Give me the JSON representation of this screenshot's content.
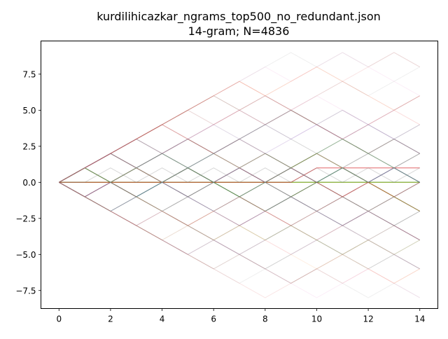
{
  "chart_data": {
    "type": "line",
    "title": [
      "kurdilihicazkar_ngrams_top500_no_redundant.json",
      "14-gram; N=4836"
    ],
    "xlabel": "",
    "ylabel": "",
    "xlim": [
      -0.7,
      14.7
    ],
    "ylim": [
      -8.75,
      9.8
    ],
    "xticks": [
      0,
      2,
      4,
      6,
      8,
      10,
      12,
      14
    ],
    "xtick_labels": [
      "0",
      "2",
      "4",
      "6",
      "8",
      "10",
      "12",
      "14"
    ],
    "yticks": [
      -7.5,
      -5.0,
      -2.5,
      0.0,
      2.5,
      5.0,
      7.5
    ],
    "ytick_labels": [
      "−7.5",
      "−5.0",
      "−2.5",
      "0.0",
      "2.5",
      "5.0",
      "7.5"
    ],
    "grid": false,
    "x": [
      0,
      1,
      2,
      3,
      4,
      5,
      6,
      7,
      8,
      9,
      10,
      11,
      12,
      13,
      14
    ],
    "series_colors": [
      "#1f77b4",
      "#ff7f0e",
      "#2ca02c",
      "#d62728",
      "#9467bd",
      "#8c564b",
      "#e377c2",
      "#7f7f7f",
      "#bcbd22",
      "#17becf"
    ],
    "series": [
      {
        "values": [
          0,
          0,
          0,
          0,
          0,
          0,
          0,
          0,
          0,
          0,
          0,
          0,
          0,
          0,
          0
        ],
        "color": "#1f77b4",
        "opacity": 0.9
      },
      {
        "values": [
          0,
          0,
          0,
          0,
          0,
          0,
          0,
          0,
          0,
          0,
          0,
          0,
          0,
          0,
          0
        ],
        "color": "#2ca02c",
        "opacity": 0.8
      },
      {
        "values": [
          0,
          0,
          0,
          0,
          0,
          0,
          0,
          0,
          0,
          0,
          0,
          0,
          0,
          0,
          0
        ],
        "color": "#bcbd22",
        "opacity": 0.8
      },
      {
        "values": [
          0,
          0,
          0,
          0,
          0,
          0,
          0,
          0,
          0,
          0,
          1,
          1,
          1,
          1,
          1
        ],
        "color": "#d62728",
        "opacity": 0.7
      },
      {
        "values": [
          0,
          1,
          0,
          1,
          0,
          1,
          0,
          1,
          0,
          1,
          0,
          1,
          0,
          1,
          0
        ],
        "color": "#8c564b",
        "opacity": 0.6
      },
      {
        "values": [
          0,
          -1,
          0,
          -1,
          0,
          -1,
          0,
          -1,
          0,
          -1,
          0,
          -1,
          0,
          -1,
          0
        ],
        "color": "#7f7f7f",
        "opacity": 0.6
      },
      {
        "values": [
          0,
          1,
          2,
          1,
          0,
          1,
          0,
          -1,
          -2,
          -1,
          0,
          -1,
          -2,
          -1,
          -2
        ],
        "color": "#8c564b",
        "opacity": 0.5
      },
      {
        "values": [
          0,
          1,
          2,
          3,
          2,
          1,
          0,
          1,
          2,
          1,
          2,
          3,
          2,
          1,
          2
        ],
        "color": "#7f7f7f",
        "opacity": 0.5
      },
      {
        "values": [
          0,
          -1,
          -2,
          -1,
          0,
          -1,
          -2,
          -3,
          -2,
          -1,
          -2,
          -3,
          -2,
          -3,
          -4
        ],
        "color": "#9467bd",
        "opacity": 0.5
      },
      {
        "values": [
          0,
          1,
          0,
          -1,
          -2,
          -1,
          0,
          1,
          0,
          -1,
          -2,
          -1,
          -2,
          -3,
          -2
        ],
        "color": "#7f7f7f",
        "opacity": 0.45
      },
      {
        "values": [
          0,
          1,
          2,
          1,
          2,
          3,
          2,
          1,
          0,
          1,
          2,
          1,
          0,
          -1,
          -2
        ],
        "color": "#8c564b",
        "opacity": 0.45
      },
      {
        "values": [
          0,
          -1,
          0,
          1,
          0,
          -1,
          0,
          -1,
          0,
          1,
          0,
          1,
          0,
          1,
          0
        ],
        "color": "#7f7f7f",
        "opacity": 0.4
      },
      {
        "values": [
          0,
          1,
          2,
          3,
          4,
          5,
          6,
          5,
          4,
          5,
          4,
          3,
          2,
          3,
          2
        ],
        "color": "#8c564b",
        "opacity": 0.35
      },
      {
        "values": [
          0,
          -1,
          -2,
          -3,
          -4,
          -5,
          -4,
          -5,
          -6,
          -5,
          -4,
          -5,
          -6,
          -5,
          -6
        ],
        "color": "#7f7f7f",
        "opacity": 0.35
      },
      {
        "values": [
          0,
          1,
          0,
          1,
          2,
          3,
          2,
          3,
          4,
          5,
          4,
          3,
          2,
          3,
          2
        ],
        "color": "#7f7f7f",
        "opacity": 0.35
      },
      {
        "values": [
          0,
          -1,
          -2,
          -3,
          -2,
          -3,
          -4,
          -3,
          -2,
          -3,
          -4,
          -3,
          -2,
          -3,
          -4
        ],
        "color": "#8c564b",
        "opacity": 0.35
      },
      {
        "values": [
          0,
          1,
          0,
          -1,
          0,
          1,
          0,
          -1,
          -2,
          -1,
          0,
          1,
          0,
          -1,
          -2
        ],
        "color": "#2ca02c",
        "opacity": 0.35
      },
      {
        "values": [
          0,
          -1,
          0,
          1,
          2,
          1,
          0,
          1,
          0,
          1,
          2,
          1,
          0,
          1,
          0
        ],
        "color": "#9467bd",
        "opacity": 0.3
      },
      {
        "values": [
          0,
          1,
          2,
          1,
          0,
          1,
          2,
          3,
          4,
          3,
          2,
          1,
          2,
          3,
          4
        ],
        "color": "#7f7f7f",
        "opacity": 0.3
      },
      {
        "values": [
          0,
          -1,
          0,
          -1,
          -2,
          -3,
          -2,
          -1,
          -2,
          -3,
          -2,
          -1,
          0,
          -1,
          -2
        ],
        "color": "#d62728",
        "opacity": 0.3
      },
      {
        "values": [
          0,
          1,
          2,
          3,
          4,
          3,
          2,
          3,
          2,
          1,
          0,
          -1,
          0,
          -1,
          0
        ],
        "color": "#d62728",
        "opacity": 0.3
      },
      {
        "values": [
          0,
          -1,
          0,
          -1,
          0,
          -1,
          -2,
          -1,
          0,
          -1,
          -2,
          -3,
          -4,
          -5,
          -4
        ],
        "color": "#7f7f7f",
        "opacity": 0.3
      },
      {
        "values": [
          0,
          0,
          1,
          0,
          1,
          0,
          1,
          0,
          1,
          0,
          1,
          0,
          1,
          0,
          1
        ],
        "color": "#7f7f7f",
        "opacity": 0.3
      },
      {
        "values": [
          0,
          1,
          2,
          1,
          2,
          1,
          2,
          1,
          2,
          1,
          2,
          1,
          2,
          1,
          2
        ],
        "color": "#7f7f7f",
        "opacity": 0.3
      },
      {
        "values": [
          0,
          -1,
          -2,
          -1,
          -2,
          -1,
          -2,
          -1,
          -2,
          -1,
          -2,
          -1,
          -2,
          -1,
          -2
        ],
        "color": "#7f7f7f",
        "opacity": 0.3
      },
      {
        "values": [
          0,
          1,
          0,
          1,
          0,
          1,
          2,
          1,
          2,
          1,
          2,
          1,
          0,
          -1,
          -2
        ],
        "color": "#bcbd22",
        "opacity": 0.3
      },
      {
        "values": [
          0,
          1,
          2,
          3,
          4,
          5,
          6,
          7,
          6,
          5,
          4,
          3,
          4,
          5,
          6
        ],
        "color": "#d62728",
        "opacity": 0.25
      },
      {
        "values": [
          0,
          -1,
          -2,
          -3,
          -4,
          -5,
          -6,
          -5,
          -6,
          -7,
          -6,
          -5,
          -4,
          -3,
          -4
        ],
        "color": "#8c564b",
        "opacity": 0.25
      },
      {
        "values": [
          0,
          1,
          0,
          -1,
          -2,
          -3,
          -2,
          -3,
          -4,
          -3,
          -2,
          -3,
          -2,
          -1,
          0
        ],
        "color": "#7f7f7f",
        "opacity": 0.25
      },
      {
        "values": [
          0,
          -1,
          0,
          1,
          0,
          1,
          2,
          1,
          2,
          3,
          4,
          3,
          4,
          3,
          2
        ],
        "color": "#9467bd",
        "opacity": 0.25
      },
      {
        "values": [
          0,
          1,
          0,
          1,
          2,
          1,
          0,
          -1,
          0,
          1,
          2,
          3,
          2,
          1,
          0
        ],
        "color": "#2ca02c",
        "opacity": 0.25
      },
      {
        "values": [
          0,
          -1,
          -2,
          -1,
          0,
          1,
          2,
          3,
          2,
          1,
          0,
          1,
          0,
          1,
          0
        ],
        "color": "#1f77b4",
        "opacity": 0.25
      },
      {
        "values": [
          0,
          1,
          2,
          3,
          2,
          3,
          4,
          5,
          6,
          5,
          4,
          5,
          4,
          3,
          2
        ],
        "color": "#7f7f7f",
        "opacity": 0.25
      },
      {
        "values": [
          0,
          1,
          0,
          -1,
          -2,
          -3,
          -4,
          -5,
          -4,
          -3,
          -4,
          -5,
          -4,
          -5,
          -6
        ],
        "color": "#7f7f7f",
        "opacity": 0.25
      },
      {
        "values": [
          0,
          1,
          2,
          3,
          4,
          5,
          6,
          7,
          8,
          7,
          8,
          9,
          8,
          7,
          6
        ],
        "color": "#e377c2",
        "opacity": 0.12
      },
      {
        "values": [
          0,
          1,
          2,
          3,
          4,
          5,
          6,
          7,
          8,
          9,
          8,
          9,
          8,
          9,
          8
        ],
        "color": "#7f7f7f",
        "opacity": 0.12
      },
      {
        "values": [
          0,
          1,
          2,
          3,
          4,
          5,
          4,
          5,
          6,
          7,
          8,
          7,
          8,
          9,
          8
        ],
        "color": "#d62728",
        "opacity": 0.12
      },
      {
        "values": [
          0,
          1,
          2,
          3,
          4,
          5,
          6,
          7,
          6,
          7,
          8,
          7,
          6,
          5,
          4
        ],
        "color": "#ff7f0e",
        "opacity": 0.12
      },
      {
        "values": [
          0,
          -1,
          -2,
          -3,
          -4,
          -5,
          -6,
          -7,
          -6,
          -7,
          -6,
          -7,
          -8,
          -7,
          -8
        ],
        "color": "#7f7f7f",
        "opacity": 0.12
      },
      {
        "values": [
          0,
          -1,
          -2,
          -3,
          -4,
          -5,
          -6,
          -7,
          -8,
          -7,
          -6,
          -7,
          -6,
          -7,
          -6
        ],
        "color": "#d62728",
        "opacity": 0.12
      },
      {
        "values": [
          0,
          -1,
          -2,
          -3,
          -4,
          -5,
          -4,
          -5,
          -6,
          -7,
          -8,
          -7,
          -6,
          -7,
          -8
        ],
        "color": "#e377c2",
        "opacity": 0.12
      },
      {
        "values": [
          0,
          1,
          2,
          3,
          4,
          5,
          4,
          3,
          4,
          5,
          6,
          7,
          6,
          7,
          8
        ],
        "color": "#7f7f7f",
        "opacity": 0.12
      },
      {
        "values": [
          0,
          -1,
          -2,
          -3,
          -4,
          -3,
          -2,
          -3,
          -4,
          -5,
          -6,
          -5,
          -6,
          -7,
          -6
        ],
        "color": "#ff7f0e",
        "opacity": 0.12
      },
      {
        "values": [
          0,
          1,
          2,
          3,
          4,
          3,
          4,
          5,
          6,
          5,
          6,
          7,
          6,
          5,
          6
        ],
        "color": "#d62728",
        "opacity": 0.12
      },
      {
        "values": [
          0,
          1,
          2,
          3,
          2,
          3,
          4,
          5,
          4,
          5,
          6,
          5,
          4,
          5,
          4
        ],
        "color": "#e377c2",
        "opacity": 0.15
      },
      {
        "values": [
          0,
          -1,
          -2,
          -3,
          -2,
          -3,
          -4,
          -5,
          -4,
          -5,
          -4,
          -3,
          -4,
          -5,
          -6
        ],
        "color": "#e377c2",
        "opacity": 0.15
      },
      {
        "values": [
          0,
          1,
          2,
          1,
          2,
          3,
          4,
          3,
          4,
          3,
          4,
          5,
          4,
          3,
          4
        ],
        "color": "#9467bd",
        "opacity": 0.15
      },
      {
        "values": [
          0,
          -1,
          -2,
          -1,
          -2,
          -3,
          -4,
          -3,
          -4,
          -3,
          -4,
          -5,
          -4,
          -5,
          -4
        ],
        "color": "#bcbd22",
        "opacity": 0.15
      },
      {
        "values": [
          0,
          1,
          2,
          3,
          4,
          3,
          2,
          3,
          4,
          5,
          4,
          3,
          4,
          5,
          6
        ],
        "color": "#7f7f7f",
        "opacity": 0.15
      },
      {
        "values": [
          0,
          -1,
          -2,
          -3,
          -4,
          -3,
          -4,
          -5,
          -4,
          -3,
          -2,
          -3,
          -4,
          -3,
          -2
        ],
        "color": "#7f7f7f",
        "opacity": 0.15
      }
    ]
  }
}
